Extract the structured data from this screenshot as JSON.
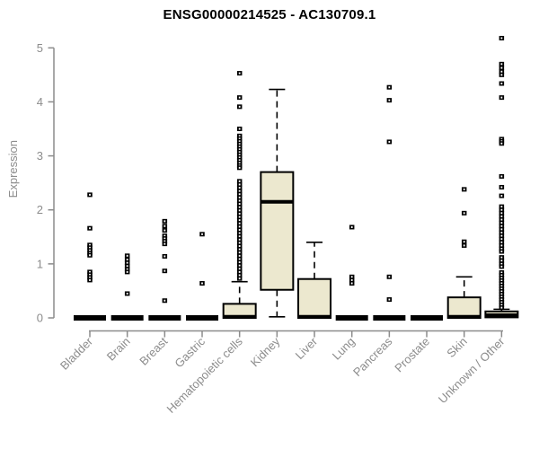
{
  "colors": {
    "background": "#ffffff",
    "box_fill": "#ece8cf",
    "box_border": "#000000",
    "median": "#000000",
    "axis": "#8c8c8c",
    "label": "#8c8c8c",
    "title": "#000000"
  },
  "chart_data": {
    "type": "boxplot",
    "title": "ENSG00000214525 - AC130709.1",
    "ylabel": "Expression",
    "xlabel": "",
    "ylim": [
      0,
      5
    ],
    "yticks": [
      0,
      1,
      2,
      3,
      4,
      5
    ],
    "grid": false,
    "legend": false,
    "categories": [
      "Bladder",
      "Brain",
      "Breast",
      "Gastric",
      "Hematopoietic cells",
      "Kidney",
      "Liver",
      "Lung",
      "Pancreas",
      "Prostate",
      "Skin",
      "Unknown / Other"
    ],
    "series": [
      {
        "name": "Bladder",
        "whislo": 0,
        "q1": 0,
        "med": 0,
        "q3": 0,
        "whishi": 0,
        "outliers": [
          2.28,
          1.66,
          1.35,
          1.3,
          1.25,
          1.2,
          1.16,
          0.85,
          0.8,
          0.75,
          0.7
        ]
      },
      {
        "name": "Brain",
        "whislo": 0,
        "q1": 0,
        "med": 0,
        "q3": 0,
        "whishi": 0,
        "outliers": [
          1.15,
          1.08,
          1.02,
          0.96,
          0.9,
          0.85,
          0.45
        ]
      },
      {
        "name": "Breast",
        "whislo": 0,
        "q1": 0,
        "med": 0,
        "q3": 0,
        "whishi": 0,
        "outliers": [
          1.79,
          1.7,
          1.62,
          1.52,
          1.47,
          1.42,
          1.37,
          1.14,
          0.87,
          0.32
        ]
      },
      {
        "name": "Gastric",
        "whislo": 0,
        "q1": 0,
        "med": 0,
        "q3": 0,
        "whishi": 0,
        "outliers": [
          1.55,
          0.64
        ]
      },
      {
        "name": "Hematopoietic cells",
        "whislo": 0,
        "q1": 0,
        "med": 0.02,
        "q3": 0.26,
        "whishi": 0.67,
        "outliers": [
          4.53,
          4.08,
          3.91,
          3.5,
          3.37,
          3.32,
          3.27,
          3.22,
          3.17,
          3.12,
          3.07,
          3.02,
          2.97,
          2.92,
          2.87,
          2.82,
          2.78,
          2.53,
          2.47,
          2.41,
          2.35,
          2.29,
          2.23,
          2.17,
          2.11,
          2.05,
          1.99,
          1.93,
          1.87,
          1.81,
          1.75,
          1.69,
          1.63,
          1.57,
          1.51,
          1.45,
          1.39,
          1.33,
          1.27,
          1.21,
          1.15,
          1.09,
          1.03,
          0.97,
          0.91,
          0.85,
          0.79,
          0.73
        ]
      },
      {
        "name": "Kidney",
        "whislo": 0.02,
        "q1": 0.52,
        "med": 2.15,
        "q3": 2.7,
        "whishi": 4.23,
        "outliers": []
      },
      {
        "name": "Liver",
        "whislo": 0,
        "q1": 0,
        "med": 0.02,
        "q3": 0.72,
        "whishi": 1.4,
        "outliers": []
      },
      {
        "name": "Lung",
        "whislo": 0,
        "q1": 0,
        "med": 0,
        "q3": 0,
        "whishi": 0,
        "outliers": [
          1.68,
          0.76,
          0.7,
          0.64
        ]
      },
      {
        "name": "Pancreas",
        "whislo": 0,
        "q1": 0,
        "med": 0,
        "q3": 0,
        "whishi": 0,
        "outliers": [
          4.27,
          4.03,
          3.26,
          0.76,
          0.34
        ]
      },
      {
        "name": "Prostate",
        "whislo": 0,
        "q1": 0,
        "med": 0,
        "q3": 0,
        "whishi": 0,
        "outliers": []
      },
      {
        "name": "Skin",
        "whislo": 0,
        "q1": 0,
        "med": 0.02,
        "q3": 0.38,
        "whishi": 0.76,
        "outliers": [
          2.38,
          1.94,
          1.41,
          1.34
        ]
      },
      {
        "name": "Unknown / Other",
        "whislo": 0,
        "q1": 0.01,
        "med": 0.05,
        "q3": 0.12,
        "whishi": 0.16,
        "outliers": [
          5.18,
          4.7,
          4.63,
          4.56,
          4.5,
          4.34,
          4.08,
          3.31,
          3.27,
          3.23,
          2.62,
          2.42,
          2.26,
          2.06,
          2.0,
          1.94,
          1.88,
          1.82,
          1.76,
          1.7,
          1.64,
          1.58,
          1.52,
          1.46,
          1.4,
          1.34,
          1.28,
          1.23,
          1.12,
          1.06,
          1.0,
          0.95,
          0.84,
          0.79,
          0.74,
          0.69,
          0.64,
          0.59,
          0.54,
          0.49,
          0.44,
          0.39,
          0.34,
          0.29,
          0.24,
          0.19
        ]
      }
    ]
  }
}
